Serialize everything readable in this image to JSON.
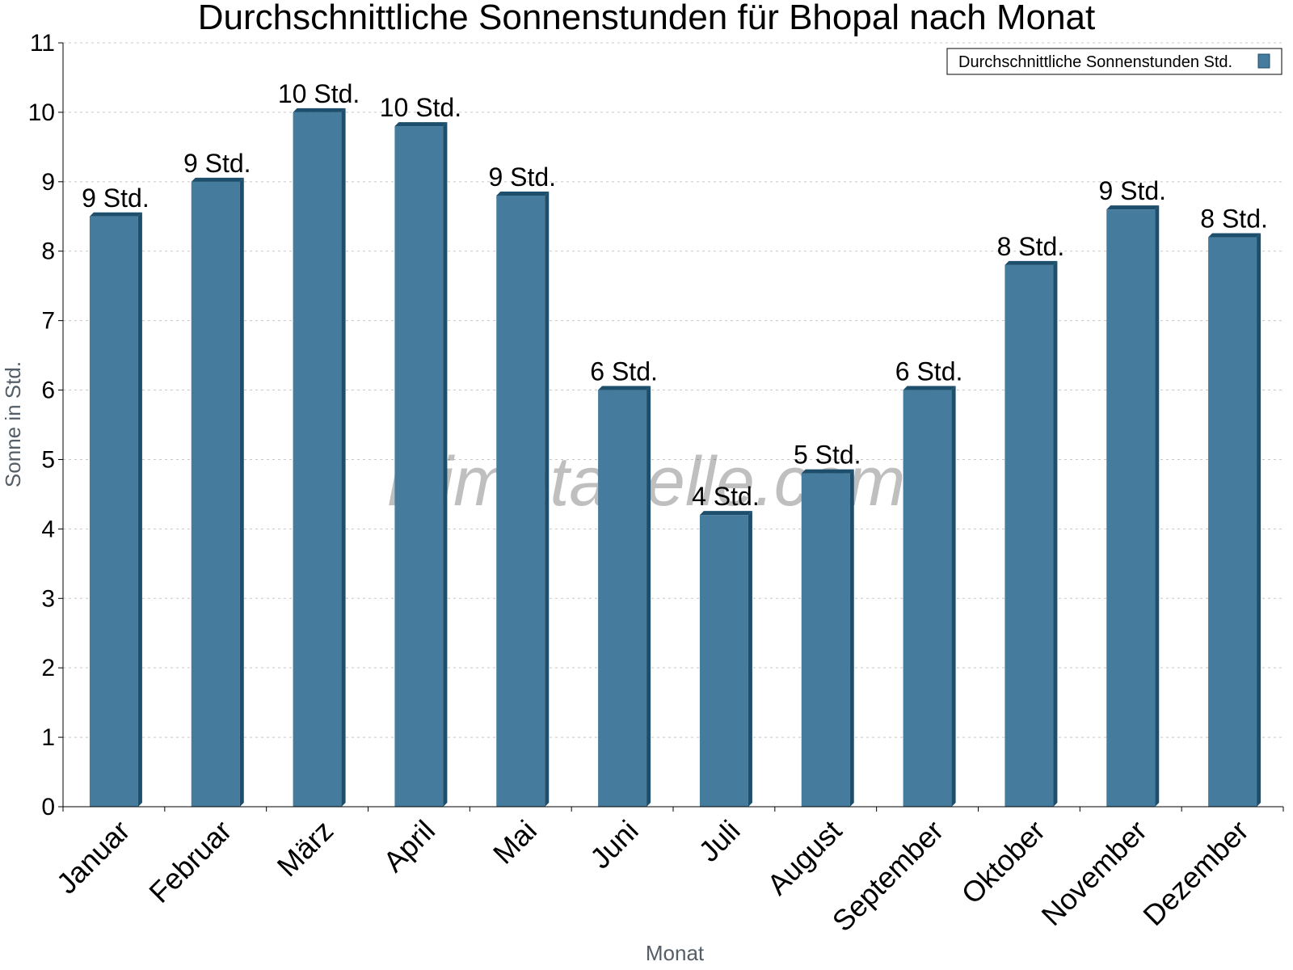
{
  "watermark": "klimatabelle.com",
  "colors": {
    "bar_face": "#457b9d",
    "bar_side": "#1d4e6b",
    "bar_top": "#1d4e6b",
    "grid": "#c8c8c8",
    "axis": "#000000"
  },
  "chart_data": {
    "type": "bar",
    "title": "Durchschnittliche Sonnenstunden für Bhopal nach Monat",
    "xlabel": "Monat",
    "ylabel": "Sonne in Std.",
    "ylim": [
      0,
      11
    ],
    "yticks": [
      0,
      1,
      2,
      3,
      4,
      5,
      6,
      7,
      8,
      9,
      10,
      11
    ],
    "grid": true,
    "legend_position": "top-right",
    "categories": [
      "Januar",
      "Februar",
      "März",
      "April",
      "Mai",
      "Juni",
      "Juli",
      "August",
      "September",
      "Oktober",
      "November",
      "Dezember"
    ],
    "series": [
      {
        "name": "Durchschnittliche Sonnenstunden Std.",
        "values": [
          8.5,
          9.0,
          10.0,
          9.8,
          8.8,
          6.0,
          4.2,
          4.8,
          6.0,
          7.8,
          8.6,
          8.2
        ],
        "labels": [
          "9 Std.",
          "9 Std.",
          "10 Std.",
          "10 Std.",
          "9 Std.",
          "6 Std.",
          "4 Std.",
          "5 Std.",
          "6 Std.",
          "8 Std.",
          "9 Std.",
          "8 Std."
        ]
      }
    ]
  }
}
